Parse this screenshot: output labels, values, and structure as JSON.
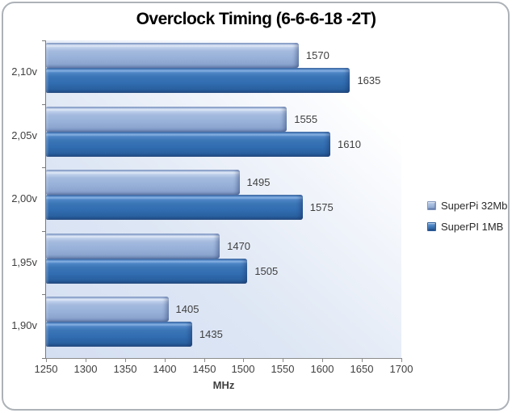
{
  "title": "Overclock Timing (6-6-6-18 -2T)",
  "chart_data": {
    "type": "bar",
    "orientation": "horizontal",
    "title": "Overclock Timing (6-6-6-18 -2T)",
    "categories": [
      "2,10v",
      "2,05v",
      "2,00v",
      "1,95v",
      "1,90v"
    ],
    "series": [
      {
        "name": "SuperPi 32Mb",
        "color": "#95B3D7",
        "values": [
          1570,
          1555,
          1495,
          1470,
          1405
        ]
      },
      {
        "name": "SuperPI 1MB",
        "color": "#366EB0",
        "values": [
          1635,
          1610,
          1575,
          1505,
          1435
        ]
      }
    ],
    "xlabel": "MHz",
    "xlim": [
      1250,
      1700
    ],
    "xticks": [
      1250,
      1300,
      1350,
      1400,
      1450,
      1500,
      1550,
      1600,
      1650,
      1700
    ],
    "legend_position": "right",
    "grid": false,
    "plot_background": {
      "from": "#d4dff2",
      "to": "#ffffff"
    },
    "frame_color": "#adb2b8"
  }
}
